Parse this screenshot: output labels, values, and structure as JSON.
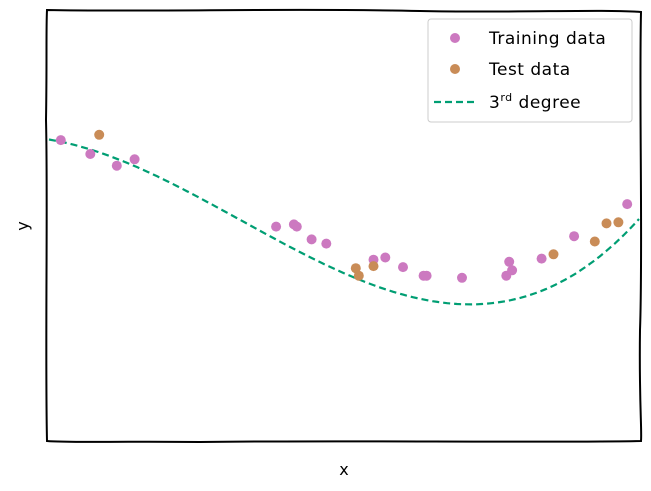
{
  "chart_data": {
    "type": "scatter",
    "title": "",
    "xlabel": "x",
    "ylabel": "y",
    "xlim": [
      0,
      10
    ],
    "ylim": [
      -2.5,
      1.5
    ],
    "grid": false,
    "ticks_visible": false,
    "legend_position": "top-right",
    "series": [
      {
        "name": "Training data",
        "kind": "scatter",
        "color": "#cc79c0",
        "points": [
          [
            0.2,
            0.3
          ],
          [
            0.7,
            0.17
          ],
          [
            1.15,
            0.06
          ],
          [
            1.45,
            0.12
          ],
          [
            3.85,
            -0.51
          ],
          [
            4.15,
            -0.49
          ],
          [
            4.2,
            -0.51
          ],
          [
            4.45,
            -0.63
          ],
          [
            4.7,
            -0.67
          ],
          [
            5.5,
            -0.82
          ],
          [
            5.7,
            -0.8
          ],
          [
            6.0,
            -0.89
          ],
          [
            6.35,
            -0.97
          ],
          [
            6.4,
            -0.97
          ],
          [
            7.0,
            -0.99
          ],
          [
            7.75,
            -0.97
          ],
          [
            7.8,
            -0.84
          ],
          [
            7.85,
            -0.92
          ],
          [
            8.35,
            -0.81
          ],
          [
            8.9,
            -0.6
          ],
          [
            9.8,
            -0.3
          ]
        ]
      },
      {
        "name": "Test data",
        "kind": "scatter",
        "color": "#c98c57",
        "points": [
          [
            0.85,
            0.35
          ],
          [
            5.2,
            -0.9
          ],
          [
            5.25,
            -0.97
          ],
          [
            5.5,
            -0.88
          ],
          [
            8.55,
            -0.77
          ],
          [
            9.25,
            -0.65
          ],
          [
            9.45,
            -0.48
          ],
          [
            9.65,
            -0.47
          ]
        ]
      },
      {
        "name": "3rd degree",
        "kind": "line",
        "style": "dashed",
        "color": "#009e73",
        "coefficients": [
          0.3056,
          -0.0905,
          -0.0656,
          0.00672
        ]
      }
    ],
    "legend": {
      "entries": [
        {
          "text": "Training data",
          "color": "#cc79c0",
          "kind": "marker"
        },
        {
          "text": "Test data",
          "color": "#c98c57",
          "kind": "marker"
        },
        {
          "text": "3",
          "sup": "rd",
          "suffix": " degree",
          "color": "#009e73",
          "kind": "dashed-line"
        }
      ]
    }
  }
}
